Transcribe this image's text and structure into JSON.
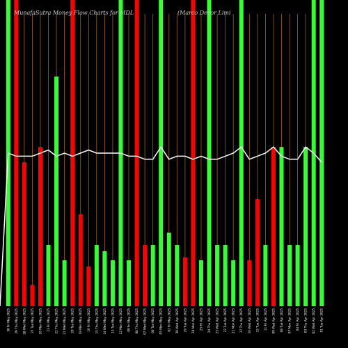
{
  "title_left": "MunafaSutra Money Flow Charts for MDL",
  "title_right": "(Marco Decor Limi",
  "chart_data": {
    "type": "bar",
    "title": "MunafaSutra Money Flow Charts for MDL",
    "categories": [
      "30 Fri May 2025",
      "29 Thu May 2025",
      "28 Wed May 2025",
      "27 Tue May 2025",
      "26 Mon May 2025",
      "23 Fri May 2025",
      "22 Thu May 2025",
      "21 Wed May 2025",
      "20 Tue May 2025",
      "19 Mon May 2025",
      "16 Fri May 2025",
      "15 Thu May 2025",
      "14 Wed May 2025",
      "13 Tue May 2025",
      "12 Mon May 2025",
      "09 Fri May 2025",
      "08 Thu May 2025",
      "07 Wed May 2025",
      "06 Tue May 2025",
      "05 Mon May 2025",
      "02 Fri May 2025",
      "30 Wed Apr 2025",
      "29 Tue Apr 2025",
      "28 Mon Apr 2025",
      "25 Fri Apr 2025",
      "24 Thu Apr 2025",
      "23 Wed Apr 2025",
      "22 Tue Apr 2025",
      "21 Mon Apr 2025",
      "17 Thu Apr 2025",
      "16 Wed Apr 2025",
      "15 Tue Apr 2025",
      "11 Fri Apr 2025",
      "09 Wed Apr 2025",
      "08 Tue Apr 2025",
      "07 Mon Apr 2025",
      "04 Fri Apr 2025",
      "03 Thu Apr 2025",
      "02 Wed Apr 2025",
      "01 Tue Apr 2025"
    ],
    "values": [
      100,
      100,
      47,
      7,
      52,
      20,
      75,
      15,
      100,
      30,
      13,
      20,
      18,
      15,
      100,
      15,
      100,
      20,
      20,
      100,
      24,
      20,
      16,
      100,
      15,
      100,
      20,
      20,
      15,
      100,
      15,
      35,
      20,
      52,
      52,
      20,
      20,
      52,
      100,
      100
    ],
    "colors": [
      "green",
      "red",
      "red",
      "red",
      "red",
      "green",
      "green",
      "green",
      "red",
      "red",
      "red",
      "green",
      "green",
      "green",
      "green",
      "green",
      "red",
      "red",
      "green",
      "green",
      "green",
      "green",
      "red",
      "red",
      "green",
      "green",
      "green",
      "green",
      "green",
      "green",
      "red",
      "red",
      "green",
      "red",
      "green",
      "green",
      "green",
      "green",
      "green",
      "green"
    ],
    "line": [
      50,
      49,
      49,
      49,
      50,
      51,
      49,
      50,
      49,
      50,
      51,
      50,
      50,
      50,
      50,
      49,
      49,
      48,
      48,
      52,
      48,
      49,
      49,
      48,
      49,
      48,
      48,
      49,
      50,
      52,
      48,
      49,
      50,
      52,
      49,
      48,
      48,
      52,
      50,
      47
    ],
    "ylim": [
      0,
      100
    ],
    "bar_colors": {
      "green": "#33ff33",
      "red": "#ff0000"
    },
    "line_color": "#ffffff",
    "grid_color": "#a0641e",
    "grid": true
  }
}
